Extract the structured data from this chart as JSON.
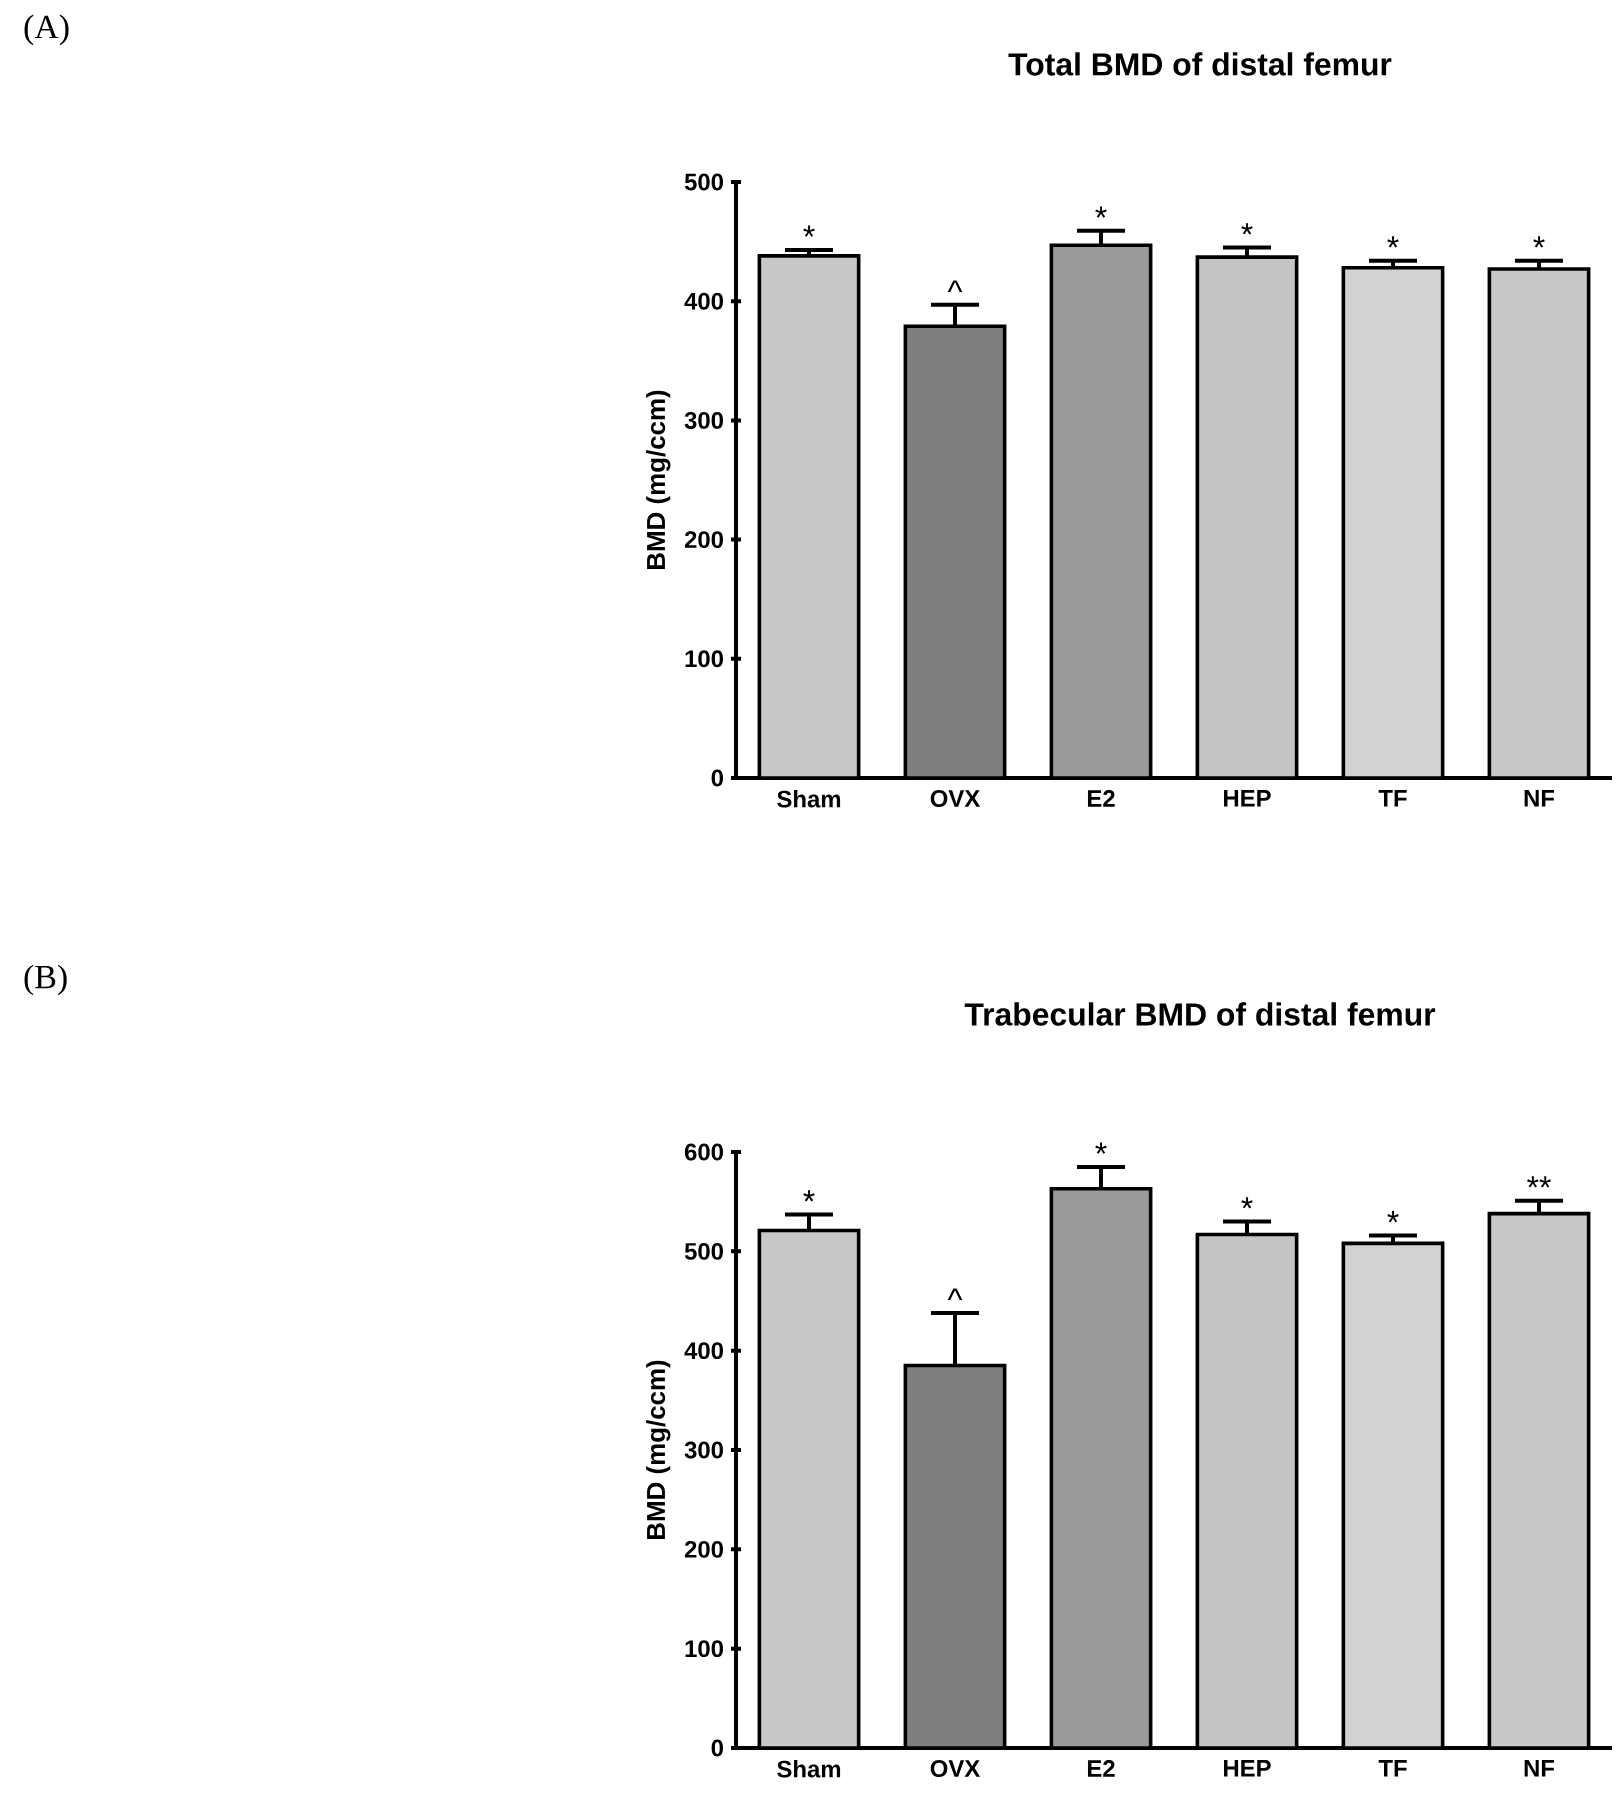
{
  "chart_data": [
    {
      "type": "bar",
      "title": "Total BMD of distal femur",
      "ylabel": "BMD (mg/ccm)",
      "categories": [
        "Sham",
        "OVX",
        "E2",
        "HEP",
        "TF",
        "NF"
      ],
      "values": [
        438,
        379,
        447,
        437,
        428,
        427
      ],
      "errors": [
        5,
        18,
        12,
        8,
        6,
        7
      ],
      "colors": [
        "#c8c8c8",
        "#7f7f7f",
        "#9a9a9a",
        "#c4c4c4",
        "#d2d2d2",
        "#c8c8c8"
      ],
      "ylim": [
        0,
        500
      ],
      "yticks": [
        0,
        100,
        200,
        300,
        400,
        500
      ],
      "annotations": [
        "(A)",
        {
          "text": "*",
          "x": "Sham",
          "y": 443
        },
        {
          "text": "^",
          "x": "OVX",
          "y": 397
        },
        {
          "text": "*",
          "x": "E2",
          "y": 459
        },
        {
          "text": "*",
          "x": "HEP",
          "y": 445
        },
        {
          "text": "*",
          "x": "TF",
          "y": 434
        },
        {
          "text": "*",
          "x": "NF",
          "y": 434
        }
      ]
    },
    {
      "type": "bar",
      "title": "Trabecular BMD of distal femur",
      "ylabel": "BMD (mg/ccm)",
      "categories": [
        "Sham",
        "OVX",
        "E2",
        "HEP",
        "TF",
        "NF"
      ],
      "values": [
        521,
        385,
        563,
        517,
        508,
        538
      ],
      "errors": [
        16,
        53,
        22,
        13,
        8,
        13
      ],
      "colors": [
        "#c8c8c8",
        "#7f7f7f",
        "#9a9a9a",
        "#c4c4c4",
        "#d2d2d2",
        "#c8c8c8"
      ],
      "ylim": [
        0,
        600
      ],
      "yticks": [
        0,
        100,
        200,
        300,
        400,
        500,
        600
      ],
      "annotations": [
        "(B)",
        {
          "text": "*",
          "x": "Sham",
          "y": 537
        },
        {
          "text": "^",
          "x": "OVX",
          "y": 438
        },
        {
          "text": "*",
          "x": "E2",
          "y": 585
        },
        {
          "text": "*",
          "x": "HEP",
          "y": 530
        },
        {
          "text": "*",
          "x": "TF",
          "y": 516
        },
        {
          "text": "**",
          "x": "NF",
          "y": 551
        }
      ]
    }
  ]
}
